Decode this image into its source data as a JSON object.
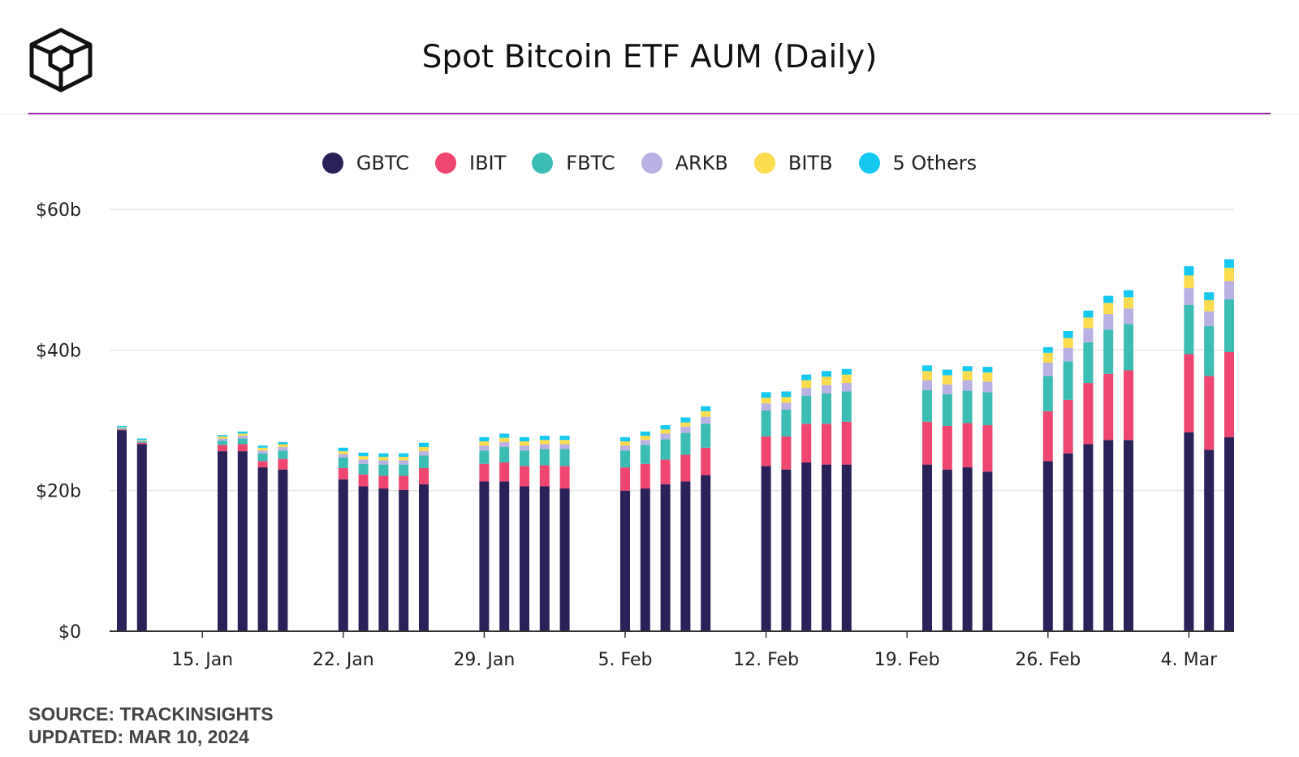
{
  "brand": {
    "logo_icon": "cube-logo-icon"
  },
  "title": "Spot Bitcoin ETF AUM (Daily)",
  "colors": {
    "GBTC": "#2a2159",
    "IBIT": "#ef4571",
    "FBTC": "#3bbdb3",
    "ARKB": "#b9b0e3",
    "BITB": "#fbdc4e",
    "5 Others": "#14c8f0",
    "divider": "#9b27af"
  },
  "legend": [
    "GBTC",
    "IBIT",
    "FBTC",
    "ARKB",
    "BITB",
    "5 Others"
  ],
  "footer": {
    "source": "SOURCE: TRACKINSIGHTS",
    "updated": "UPDATED: MAR 10, 2024"
  },
  "chart_data": {
    "type": "bar",
    "stacked": true,
    "title": "Spot Bitcoin ETF AUM (Daily)",
    "y_tick_labels": [
      "$0",
      "$20b",
      "$40b",
      "$60b"
    ],
    "y_ticks": [
      0,
      20,
      40,
      60
    ],
    "ylim": [
      0,
      60
    ],
    "x_tick_labels": [
      "15. Jan",
      "22. Jan",
      "29. Jan",
      "5. Feb",
      "12. Feb",
      "19. Feb",
      "26. Feb",
      "4. Mar"
    ],
    "x_tick_dates": [
      "2024-01-15",
      "2024-01-22",
      "2024-01-29",
      "2024-02-05",
      "2024-02-12",
      "2024-02-19",
      "2024-02-26",
      "2024-03-04"
    ],
    "grid": true,
    "legend_position": "top-center",
    "dates": [
      "2024-01-11",
      "2024-01-12",
      "2024-01-16",
      "2024-01-17",
      "2024-01-18",
      "2024-01-19",
      "2024-01-22",
      "2024-01-23",
      "2024-01-24",
      "2024-01-25",
      "2024-01-26",
      "2024-01-29",
      "2024-01-30",
      "2024-01-31",
      "2024-02-01",
      "2024-02-02",
      "2024-02-05",
      "2024-02-06",
      "2024-02-07",
      "2024-02-08",
      "2024-02-09",
      "2024-02-12",
      "2024-02-13",
      "2024-02-14",
      "2024-02-15",
      "2024-02-16",
      "2024-02-20",
      "2024-02-21",
      "2024-02-22",
      "2024-02-23",
      "2024-02-26",
      "2024-02-27",
      "2024-02-28",
      "2024-02-29",
      "2024-03-01",
      "2024-03-04",
      "2024-03-05",
      "2024-03-06"
    ],
    "series": [
      {
        "name": "GBTC",
        "values": [
          28.6,
          26.6,
          25.6,
          25.6,
          23.3,
          23.0,
          21.6,
          20.6,
          20.3,
          20.1,
          20.9,
          21.3,
          21.3,
          20.6,
          20.6,
          20.3,
          20.0,
          20.3,
          20.9,
          21.3,
          22.2,
          23.5,
          23.0,
          24.0,
          23.7,
          23.7,
          23.7,
          23.0,
          23.3,
          22.7,
          24.2,
          25.3,
          26.6,
          27.2,
          27.2,
          28.3,
          25.8,
          27.6
        ]
      },
      {
        "name": "IBIT",
        "values": [
          0.1,
          0.2,
          0.9,
          1.0,
          0.9,
          1.5,
          1.6,
          1.7,
          1.8,
          2.0,
          2.3,
          2.5,
          2.7,
          2.9,
          3.0,
          3.2,
          3.3,
          3.5,
          3.5,
          3.8,
          3.9,
          4.2,
          4.7,
          5.5,
          5.8,
          6.1,
          6.1,
          6.2,
          6.3,
          6.6,
          7.1,
          7.6,
          8.7,
          9.4,
          9.9,
          11.1,
          10.5,
          12.1
        ]
      },
      {
        "name": "FBTC",
        "values": [
          0.1,
          0.2,
          0.6,
          0.8,
          1.1,
          1.2,
          1.5,
          1.5,
          1.6,
          1.6,
          1.8,
          1.9,
          2.2,
          2.2,
          2.3,
          2.4,
          2.4,
          2.7,
          2.9,
          3.1,
          3.4,
          3.7,
          3.8,
          4.0,
          4.3,
          4.3,
          4.5,
          4.5,
          4.6,
          4.7,
          5.0,
          5.5,
          5.8,
          6.3,
          6.6,
          7.0,
          7.1,
          7.5
        ]
      },
      {
        "name": "ARKB",
        "values": [
          0.1,
          0.1,
          0.3,
          0.4,
          0.4,
          0.5,
          0.5,
          0.6,
          0.6,
          0.6,
          0.6,
          0.7,
          0.7,
          0.7,
          0.7,
          0.7,
          0.7,
          0.7,
          0.8,
          0.9,
          1.0,
          1.0,
          1.0,
          1.1,
          1.2,
          1.2,
          1.4,
          1.4,
          1.5,
          1.5,
          1.9,
          1.9,
          2.0,
          2.2,
          2.2,
          2.4,
          2.1,
          2.6
        ]
      },
      {
        "name": "BITB",
        "values": [
          0.1,
          0.1,
          0.3,
          0.3,
          0.4,
          0.4,
          0.4,
          0.5,
          0.5,
          0.5,
          0.6,
          0.6,
          0.6,
          0.6,
          0.6,
          0.6,
          0.6,
          0.6,
          0.6,
          0.6,
          0.8,
          0.8,
          0.8,
          1.1,
          1.2,
          1.2,
          1.3,
          1.3,
          1.3,
          1.3,
          1.4,
          1.4,
          1.5,
          1.6,
          1.6,
          1.8,
          1.6,
          1.9
        ]
      },
      {
        "name": "5 Others",
        "values": [
          0.2,
          0.2,
          0.2,
          0.3,
          0.3,
          0.3,
          0.5,
          0.5,
          0.5,
          0.5,
          0.6,
          0.6,
          0.6,
          0.6,
          0.6,
          0.6,
          0.6,
          0.6,
          0.6,
          0.7,
          0.7,
          0.8,
          0.8,
          0.8,
          0.8,
          0.8,
          0.8,
          0.8,
          0.7,
          0.8,
          0.8,
          1.0,
          1.0,
          1.0,
          1.0,
          1.3,
          1.1,
          1.2
        ]
      }
    ]
  }
}
